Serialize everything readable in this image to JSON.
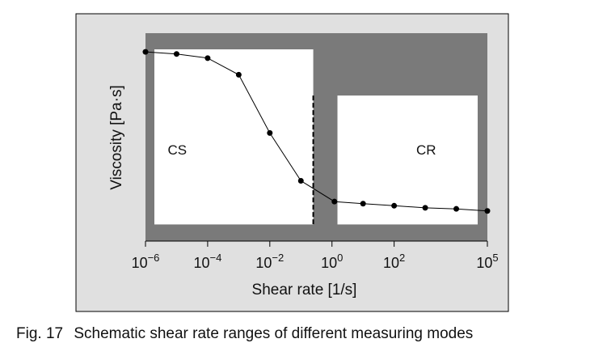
{
  "caption": {
    "number": "Fig. 17",
    "text": "Schematic shear rate ranges of different measuring modes"
  },
  "colors": {
    "outer_panel": "#e0e0e0",
    "plot_background": "#7a7a7a",
    "region_fill": "#ffffff",
    "line": "#000000"
  },
  "chart_data": {
    "type": "line",
    "title": "",
    "xlabel": "Shear rate [1/s]",
    "ylabel": "Viscosity [Pa·s]",
    "x_scale": "log",
    "xlim": [
      1e-06,
      100000.0
    ],
    "ylim": [
      0,
      1
    ],
    "y_units": "schematic (unlabeled)",
    "ticks": [
      {
        "value": 1e-06,
        "base": "10",
        "exp": "−6"
      },
      {
        "value": 0.0001,
        "base": "10",
        "exp": "−4"
      },
      {
        "value": 0.01,
        "base": "10",
        "exp": "−2"
      },
      {
        "value": 1.0,
        "base": "10",
        "exp": "0"
      },
      {
        "value": 100.0,
        "base": "10",
        "exp": "2"
      },
      {
        "value": 100000.0,
        "base": "10",
        "exp": "5"
      }
    ],
    "regions": [
      {
        "label": "CS",
        "x_start": 1e-06,
        "x_end": 0.25,
        "y_start": 0.08,
        "y_end": 1.0
      },
      {
        "label": "CR",
        "x_start": 1.5,
        "x_end": 100000.0,
        "y_start": 0.08,
        "y_end": 0.7
      }
    ],
    "series": [
      {
        "name": "viscosity curve",
        "x": [
          1e-06,
          1e-05,
          0.0001,
          0.001,
          0.01,
          0.1,
          1.2,
          10,
          100,
          1000,
          10000,
          100000.0
        ],
        "y": [
          0.91,
          0.9,
          0.88,
          0.8,
          0.52,
          0.29,
          0.19,
          0.18,
          0.17,
          0.16,
          0.155,
          0.145
        ]
      }
    ]
  }
}
